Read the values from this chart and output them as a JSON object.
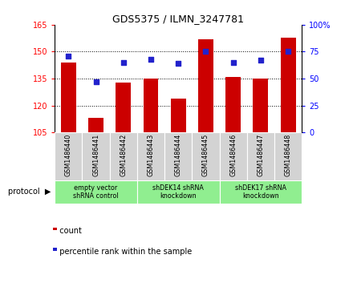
{
  "title": "GDS5375 / ILMN_3247781",
  "samples": [
    "GSM1486440",
    "GSM1486441",
    "GSM1486442",
    "GSM1486443",
    "GSM1486444",
    "GSM1486445",
    "GSM1486446",
    "GSM1486447",
    "GSM1486448"
  ],
  "counts": [
    144,
    113,
    133,
    135,
    124,
    157,
    136,
    135,
    158
  ],
  "percentiles": [
    71,
    47,
    65,
    68,
    64,
    75,
    65,
    67,
    75
  ],
  "ylim_left": [
    105,
    165
  ],
  "ylim_right": [
    0,
    100
  ],
  "yticks_left": [
    105,
    120,
    135,
    150,
    165
  ],
  "yticks_right": [
    0,
    25,
    50,
    75,
    100
  ],
  "hgrid_vals": [
    120,
    135,
    150
  ],
  "bar_color": "#cc0000",
  "dot_color": "#2222cc",
  "bg_plot": "#ffffff",
  "sample_bg": "#d3d3d3",
  "protocol_bg": "#90EE90",
  "protocol_groups": [
    {
      "label": "empty vector\nshRNA control",
      "start": 0,
      "end": 3
    },
    {
      "label": "shDEK14 shRNA\nknockdown",
      "start": 3,
      "end": 6
    },
    {
      "label": "shDEK17 shRNA\nknockdown",
      "start": 6,
      "end": 9
    }
  ],
  "legend_count_label": "count",
  "legend_percentile_label": "percentile rank within the sample",
  "protocol_label": "protocol"
}
